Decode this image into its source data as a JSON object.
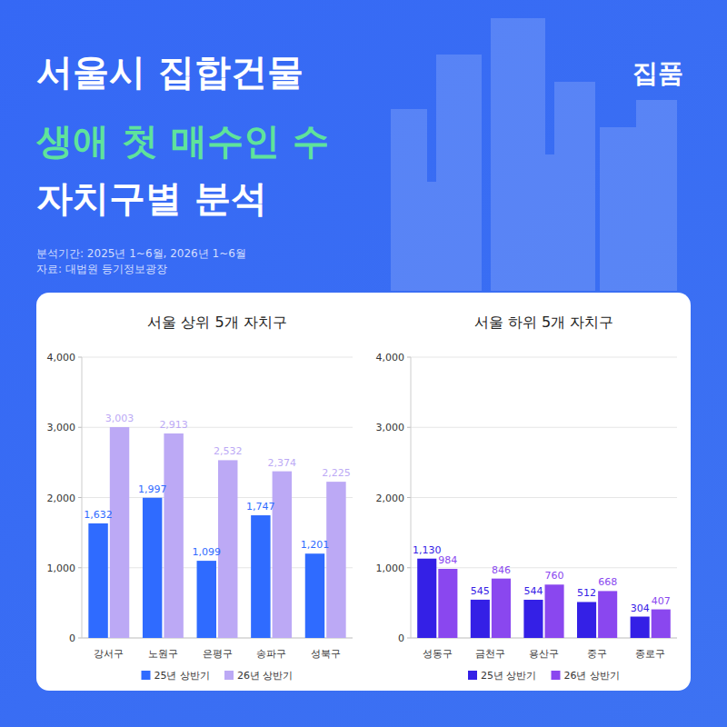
{
  "header": {
    "title_lines": [
      "서울시 집합건물",
      "생애 첫 매수인 수",
      "자치구별 분석"
    ],
    "logo": "집품",
    "notes": [
      "분석기간: 2025년 1~6월, 2026년 1~6월",
      "자료: 대법원 등기정보광장"
    ]
  },
  "chart_data": [
    {
      "type": "bar",
      "title": "서울 상위 5개 자치구",
      "categories": [
        "강서구",
        "노원구",
        "은평구",
        "송파구",
        "성북구"
      ],
      "series": [
        {
          "name": "25년 상반기",
          "color": "#2f6bff",
          "values": [
            1632,
            1997,
            1099,
            1747,
            1201
          ],
          "value_labels": [
            "1,632",
            "1,997",
            "1,099",
            "1,747",
            "1,201"
          ]
        },
        {
          "name": "26년 상반기",
          "color": "#bca9f5",
          "values": [
            3003,
            2913,
            2532,
            2374,
            2225
          ],
          "value_labels": [
            "3,003",
            "2,913",
            "2,532",
            "2,374",
            "2,225"
          ]
        }
      ],
      "ylim": [
        0,
        4000
      ],
      "yticks": [
        0,
        {
          "value": 1000,
          "label": "1,000"
        },
        {
          "value": 2000,
          "label": "2,000"
        },
        {
          "value": 3000,
          "label": "3,000"
        },
        {
          "value": 4000,
          "label": "4,000"
        }
      ],
      "grid": true,
      "data_labels": true,
      "legend": "bottom"
    },
    {
      "type": "bar",
      "title": "서울 하위 5개 자치구",
      "categories": [
        "성동구",
        "금천구",
        "용산구",
        "중구",
        "종로구"
      ],
      "series": [
        {
          "name": "25년 상반기",
          "color": "#3420e6",
          "values": [
            1130,
            545,
            544,
            512,
            304
          ],
          "value_labels": [
            "1,130",
            "545",
            "544",
            "512",
            "304"
          ]
        },
        {
          "name": "26년 상반기",
          "color": "#8a47ef",
          "values": [
            984,
            846,
            760,
            668,
            407
          ],
          "value_labels": [
            "984",
            "846",
            "760",
            "668",
            "407"
          ]
        }
      ],
      "ylim": [
        0,
        4000
      ],
      "yticks": [
        0,
        {
          "value": 1000,
          "label": "1,000"
        },
        {
          "value": 2000,
          "label": "2,000"
        },
        {
          "value": 3000,
          "label": "3,000"
        },
        {
          "value": 4000,
          "label": "4,000"
        }
      ],
      "grid": true,
      "data_labels": true,
      "legend": "bottom"
    }
  ]
}
